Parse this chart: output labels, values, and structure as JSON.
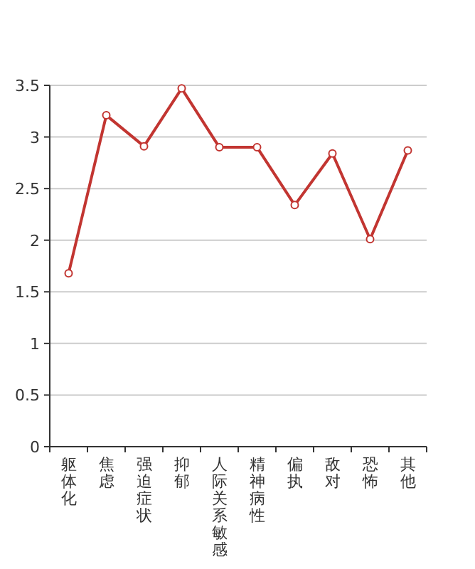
{
  "chart_data": {
    "type": "line",
    "categories": [
      "躯体化",
      "焦虑",
      "强迫症状",
      "抑郁",
      "人际关系敏感",
      "精神病性",
      "偏执",
      "敌对",
      "恐怖",
      "其他"
    ],
    "series": [
      {
        "color": "#c23531",
        "values": [
          1.68,
          3.21,
          2.91,
          3.47,
          2.9,
          2.9,
          2.34,
          2.84,
          2.01,
          2.87
        ]
      }
    ],
    "ylim": [
      0,
      3.5
    ],
    "yticks": [
      0,
      {
        "value": 0.5,
        "label": "0.5"
      },
      1,
      {
        "value": 1.5,
        "label": "1.5"
      },
      2,
      {
        "value": 2.5,
        "label": "2.5"
      },
      3,
      {
        "value": 3.5,
        "label": "3.5"
      }
    ],
    "grid": "y",
    "marker": "circle",
    "line_style": "solid"
  }
}
